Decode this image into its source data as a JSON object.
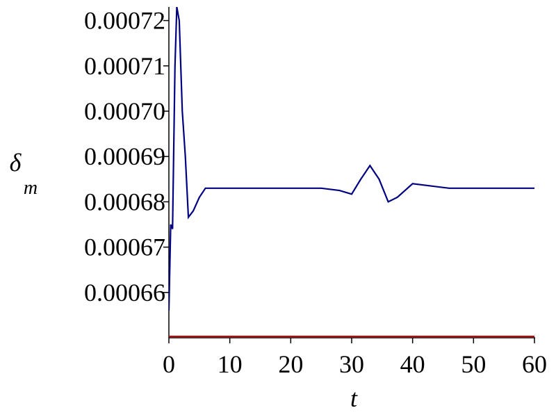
{
  "chart_data": {
    "type": "line",
    "xlabel": "t",
    "ylabel": "δ",
    "ylabel_subscript": "m",
    "xlim": [
      0,
      60
    ],
    "ylim": [
      0.00065,
      0.000723
    ],
    "xticks": [
      0,
      10,
      20,
      30,
      40,
      50,
      60
    ],
    "yticks": [
      0.00066,
      0.00067,
      0.00068,
      0.00069,
      {
        "value": 0.0007,
        "label": "0.00070"
      },
      0.00071,
      0.00072
    ],
    "series": [
      {
        "color": "#000080",
        "x": [
          0,
          0.3,
          0.6,
          1.0,
          1.3,
          1.7,
          2.2,
          2.7,
          3.2,
          4,
          5,
          6,
          7,
          15,
          25,
          28,
          30,
          31.5,
          33,
          34.5,
          36,
          37.5,
          40,
          43,
          46,
          60
        ],
        "values": [
          0.000656,
          0.000675,
          0.000674,
          0.00071,
          0.000723,
          0.00072,
          0.0007,
          0.00069,
          0.0006766,
          0.000678,
          0.000681,
          0.000683,
          0.000683,
          0.000683,
          0.000683,
          0.0006825,
          0.0006817,
          0.000685,
          0.000688,
          0.000685,
          0.00068,
          0.000681,
          0.000684,
          0.0006835,
          0.000683,
          0.000683
        ]
      },
      {
        "color": "#cc0000",
        "x": [
          0,
          60
        ],
        "values": [
          0.0006503,
          0.0006503
        ]
      }
    ]
  }
}
